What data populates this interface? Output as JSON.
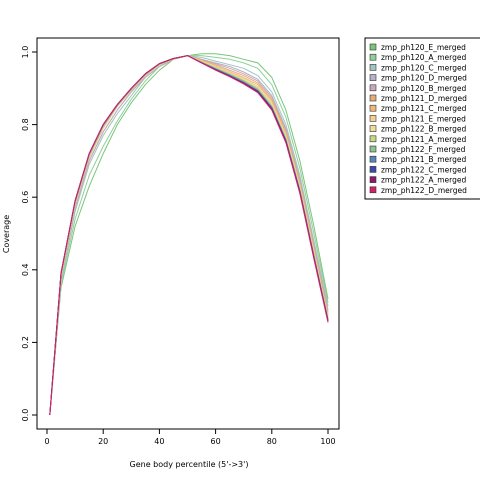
{
  "chart_data": {
    "type": "line",
    "title": "",
    "xlabel": "Gene body percentile (5'->3')",
    "ylabel": "Coverage",
    "xlim": [
      0,
      100
    ],
    "ylim": [
      0,
      1
    ],
    "xticks": [
      0,
      20,
      40,
      60,
      80,
      100
    ],
    "yticks": [
      0.0,
      0.2,
      0.4,
      0.6,
      0.8,
      1.0
    ],
    "xtick_labels": [
      "0",
      "20",
      "40",
      "60",
      "80",
      "100"
    ],
    "ytick_labels": [
      "0.0",
      "0.2",
      "0.4",
      "0.6",
      "0.8",
      "1.0"
    ],
    "grid": false,
    "legend_position": "top-right outside",
    "x": [
      1,
      5,
      10,
      15,
      20,
      25,
      30,
      35,
      40,
      45,
      50,
      55,
      60,
      65,
      70,
      75,
      80,
      85,
      90,
      95,
      100
    ],
    "series": [
      {
        "name": "zmp_ph120_E_merged",
        "color": "#78c679",
        "values": [
          0.0,
          0.35,
          0.52,
          0.63,
          0.72,
          0.8,
          0.86,
          0.91,
          0.95,
          0.98,
          0.99,
          0.995,
          0.995,
          0.99,
          0.98,
          0.97,
          0.93,
          0.84,
          0.7,
          0.52,
          0.32
        ]
      },
      {
        "name": "zmp_ph120_A_merged",
        "color": "#8fcf9a",
        "values": [
          0.0,
          0.36,
          0.54,
          0.66,
          0.74,
          0.81,
          0.87,
          0.92,
          0.96,
          0.98,
          0.99,
          0.99,
          0.985,
          0.98,
          0.97,
          0.955,
          0.91,
          0.82,
          0.68,
          0.5,
          0.31
        ]
      },
      {
        "name": "zmp_ph120_C_merged",
        "color": "#9ec6c0",
        "values": [
          0.0,
          0.37,
          0.56,
          0.69,
          0.77,
          0.83,
          0.88,
          0.93,
          0.96,
          0.98,
          0.99,
          0.985,
          0.975,
          0.965,
          0.955,
          0.935,
          0.89,
          0.8,
          0.66,
          0.48,
          0.3
        ]
      },
      {
        "name": "zmp_ph120_D_merged",
        "color": "#b3b3c6",
        "values": [
          0.0,
          0.37,
          0.57,
          0.7,
          0.78,
          0.84,
          0.89,
          0.93,
          0.96,
          0.98,
          0.99,
          0.98,
          0.97,
          0.96,
          0.945,
          0.925,
          0.88,
          0.79,
          0.65,
          0.47,
          0.29
        ]
      },
      {
        "name": "zmp_ph120_B_merged",
        "color": "#c9a9b8",
        "values": [
          0.0,
          0.38,
          0.57,
          0.7,
          0.78,
          0.84,
          0.89,
          0.93,
          0.96,
          0.98,
          0.99,
          0.98,
          0.968,
          0.955,
          0.94,
          0.92,
          0.875,
          0.785,
          0.645,
          0.465,
          0.285
        ]
      },
      {
        "name": "zmp_ph121_D_merged",
        "color": "#e6ab7a",
        "values": [
          0.0,
          0.38,
          0.58,
          0.71,
          0.79,
          0.85,
          0.895,
          0.935,
          0.965,
          0.98,
          0.99,
          0.978,
          0.965,
          0.95,
          0.935,
          0.915,
          0.87,
          0.78,
          0.64,
          0.46,
          0.28
        ]
      },
      {
        "name": "zmp_ph121_C_merged",
        "color": "#f0b77a",
        "values": [
          0.0,
          0.38,
          0.58,
          0.71,
          0.79,
          0.85,
          0.895,
          0.935,
          0.965,
          0.98,
          0.99,
          0.976,
          0.962,
          0.946,
          0.93,
          0.91,
          0.865,
          0.775,
          0.635,
          0.455,
          0.275
        ]
      },
      {
        "name": "zmp_ph121_E_merged",
        "color": "#f5cf8f",
        "values": [
          0.0,
          0.38,
          0.58,
          0.71,
          0.79,
          0.85,
          0.895,
          0.935,
          0.965,
          0.98,
          0.99,
          0.975,
          0.96,
          0.944,
          0.927,
          0.905,
          0.86,
          0.77,
          0.63,
          0.45,
          0.27
        ]
      },
      {
        "name": "zmp_ph122_B_merged",
        "color": "#eedc9a",
        "values": [
          0.0,
          0.385,
          0.585,
          0.715,
          0.795,
          0.852,
          0.897,
          0.937,
          0.966,
          0.981,
          0.99,
          0.974,
          0.958,
          0.942,
          0.924,
          0.902,
          0.856,
          0.766,
          0.626,
          0.446,
          0.268
        ]
      },
      {
        "name": "zmp_ph121_A_merged",
        "color": "#c8d68a",
        "values": [
          0.0,
          0.385,
          0.585,
          0.715,
          0.795,
          0.852,
          0.897,
          0.937,
          0.966,
          0.981,
          0.99,
          0.973,
          0.957,
          0.94,
          0.922,
          0.9,
          0.853,
          0.763,
          0.623,
          0.443,
          0.266
        ]
      },
      {
        "name": "zmp_ph122_F_merged",
        "color": "#8fbf95",
        "values": [
          0.0,
          0.385,
          0.585,
          0.715,
          0.795,
          0.852,
          0.897,
          0.937,
          0.966,
          0.981,
          0.99,
          0.972,
          0.955,
          0.938,
          0.92,
          0.897,
          0.85,
          0.76,
          0.62,
          0.44,
          0.264
        ]
      },
      {
        "name": "zmp_ph121_B_merged",
        "color": "#5b84b8",
        "values": [
          0.0,
          0.39,
          0.59,
          0.72,
          0.8,
          0.855,
          0.9,
          0.94,
          0.968,
          0.982,
          0.99,
          0.971,
          0.953,
          0.936,
          0.917,
          0.894,
          0.847,
          0.757,
          0.617,
          0.437,
          0.262
        ]
      },
      {
        "name": "zmp_ph122_C_merged",
        "color": "#3b4ba8",
        "values": [
          0.0,
          0.39,
          0.59,
          0.72,
          0.8,
          0.855,
          0.9,
          0.94,
          0.968,
          0.982,
          0.99,
          0.97,
          0.952,
          0.934,
          0.915,
          0.892,
          0.845,
          0.755,
          0.615,
          0.435,
          0.26
        ]
      },
      {
        "name": "zmp_ph122_A_merged",
        "color": "#8b1a6b",
        "values": [
          0.0,
          0.39,
          0.59,
          0.72,
          0.8,
          0.855,
          0.9,
          0.94,
          0.968,
          0.982,
          0.99,
          0.97,
          0.951,
          0.933,
          0.914,
          0.89,
          0.843,
          0.753,
          0.613,
          0.433,
          0.258
        ]
      },
      {
        "name": "zmp_ph122_D_merged",
        "color": "#d6206a",
        "values": [
          0.0,
          0.39,
          0.59,
          0.72,
          0.8,
          0.855,
          0.9,
          0.94,
          0.968,
          0.982,
          0.99,
          0.97,
          0.95,
          0.932,
          0.912,
          0.888,
          0.84,
          0.75,
          0.61,
          0.43,
          0.255
        ]
      }
    ]
  }
}
